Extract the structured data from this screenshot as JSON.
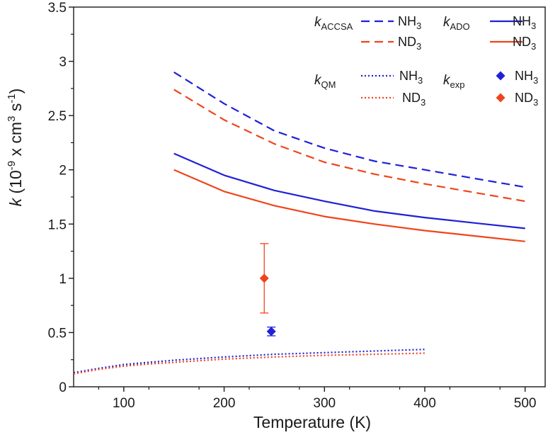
{
  "chart_data": {
    "type": "line",
    "xlabel": "Temperature (K)",
    "ylabel": {
      "var": "k",
      "text": " (10",
      "exp1": "-9",
      "mid": " x cm",
      "exp2": "3",
      "mid2": " s",
      "exp3": "-1",
      "end": ")"
    },
    "xlim": [
      50,
      520
    ],
    "ylim": [
      0,
      3.5
    ],
    "xticks": [
      100,
      200,
      300,
      400,
      500
    ],
    "yticks": [
      0,
      0.5,
      1,
      1.5,
      2,
      2.5,
      3,
      3.5
    ],
    "xtick_labels": [
      "100",
      "200",
      "300",
      "400",
      "500"
    ],
    "ytick_labels": [
      "0",
      "0.5",
      "1",
      "1.5",
      "2",
      "2.5",
      "3",
      "3.5"
    ],
    "colors": {
      "nh3": "#2020d8",
      "nd3": "#f0441c",
      "axis": "#1a1a1a"
    },
    "series": [
      {
        "name": "kACCSA NH3",
        "model": "ACCSA",
        "species": "NH3",
        "style": "dashed",
        "color": "#2020d8",
        "x": [
          150,
          200,
          250,
          300,
          350,
          400,
          450,
          500
        ],
        "y": [
          2.9,
          2.61,
          2.36,
          2.2,
          2.08,
          2.0,
          1.92,
          1.84
        ]
      },
      {
        "name": "kACCSA ND3",
        "model": "ACCSA",
        "species": "ND3",
        "style": "dashed",
        "color": "#f0441c",
        "x": [
          150,
          200,
          250,
          300,
          350,
          400,
          450,
          500
        ],
        "y": [
          2.74,
          2.46,
          2.24,
          2.07,
          1.96,
          1.87,
          1.79,
          1.71
        ]
      },
      {
        "name": "kADO NH3",
        "model": "ADO",
        "species": "NH3",
        "style": "solid",
        "color": "#2020d8",
        "x": [
          150,
          200,
          250,
          300,
          350,
          400,
          450,
          500
        ],
        "y": [
          2.15,
          1.95,
          1.81,
          1.71,
          1.62,
          1.56,
          1.51,
          1.46
        ]
      },
      {
        "name": "kADO ND3",
        "model": "ADO",
        "species": "ND3",
        "style": "solid",
        "color": "#f0441c",
        "x": [
          150,
          200,
          250,
          300,
          350,
          400,
          450,
          500
        ],
        "y": [
          2.0,
          1.8,
          1.67,
          1.57,
          1.5,
          1.44,
          1.39,
          1.34
        ]
      },
      {
        "name": "kQM NH3",
        "model": "QM",
        "species": "NH3",
        "style": "dotted",
        "color": "#2020d8",
        "x": [
          50,
          75,
          100,
          125,
          150,
          200,
          250,
          300,
          350,
          400
        ],
        "y": [
          0.13,
          0.17,
          0.205,
          0.225,
          0.245,
          0.275,
          0.3,
          0.315,
          0.33,
          0.345
        ]
      },
      {
        "name": "kQM ND3",
        "model": "QM",
        "species": "ND3",
        "style": "dotted",
        "color": "#f0441c",
        "x": [
          50,
          75,
          100,
          125,
          150,
          200,
          250,
          300,
          350,
          400
        ],
        "y": [
          0.12,
          0.16,
          0.19,
          0.21,
          0.225,
          0.255,
          0.275,
          0.29,
          0.3,
          0.31
        ]
      }
    ],
    "points": [
      {
        "name": "kexp NH3",
        "species": "NH3",
        "x": 247,
        "y": 0.51,
        "err": 0.04,
        "color": "#2020d8"
      },
      {
        "name": "kexp ND3",
        "species": "ND3",
        "x": 240,
        "y": 1.0,
        "err": 0.32,
        "color": "#f0441c"
      }
    ],
    "legend": {
      "placement": "top-right",
      "groups": [
        {
          "k_label": "k",
          "k_sub": "ACCSA",
          "entries": [
            {
              "style": "dashed",
              "color": "#2020d8",
              "base": "NH",
              "sub": "3"
            },
            {
              "style": "dashed",
              "color": "#f0441c",
              "base": "ND",
              "sub": "3"
            }
          ]
        },
        {
          "k_label": "k",
          "k_sub": "ADO",
          "entries": [
            {
              "style": "solid",
              "color": "#2020d8",
              "base": "NH",
              "sub": "3"
            },
            {
              "style": "solid",
              "color": "#f0441c",
              "base": "ND",
              "sub": "3"
            }
          ]
        },
        {
          "k_label": "k",
          "k_sub": "QM",
          "entries": [
            {
              "style": "dotted",
              "color": "#2020d8",
              "base": "NH",
              "sub": "3"
            },
            {
              "style": "dotted",
              "color": "#f0441c",
              "base": "ND",
              "sub": "3"
            }
          ]
        },
        {
          "k_label": "k",
          "k_sub": "exp",
          "entries": [
            {
              "style": "marker",
              "color": "#2020d8",
              "base": "NH",
              "sub": "3"
            },
            {
              "style": "marker",
              "color": "#f0441c",
              "base": "ND",
              "sub": "3"
            }
          ]
        }
      ]
    }
  }
}
